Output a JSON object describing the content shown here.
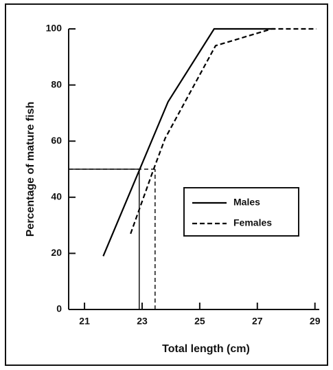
{
  "chart_data": {
    "type": "line",
    "x_label": "Total length (cm)",
    "y_label": "Percentage of mature fish",
    "xlim": [
      20.45,
      29.15
    ],
    "xticks": [
      21,
      23,
      25,
      27,
      29
    ],
    "ylim": [
      0,
      100
    ],
    "yticks": [
      0,
      20,
      40,
      60,
      80,
      100
    ],
    "series": [
      {
        "name": "Males",
        "color": "#000000",
        "dash": false,
        "x": [
          21.65,
          23.9,
          25.5,
          27.6
        ],
        "values": [
          19,
          74,
          100,
          100
        ]
      },
      {
        "name": "Females",
        "color": "#000000",
        "dash": true,
        "x": [
          22.6,
          23.4,
          23.8,
          25.55,
          27.5,
          29.05
        ],
        "values": [
          27,
          50,
          61,
          94,
          100,
          100
        ]
      }
    ],
    "reference_lines": [
      {
        "x": 22.9,
        "y": 50,
        "dash": false
      },
      {
        "x": 23.45,
        "y": 50,
        "dash": true
      }
    ],
    "legend": "center right"
  }
}
